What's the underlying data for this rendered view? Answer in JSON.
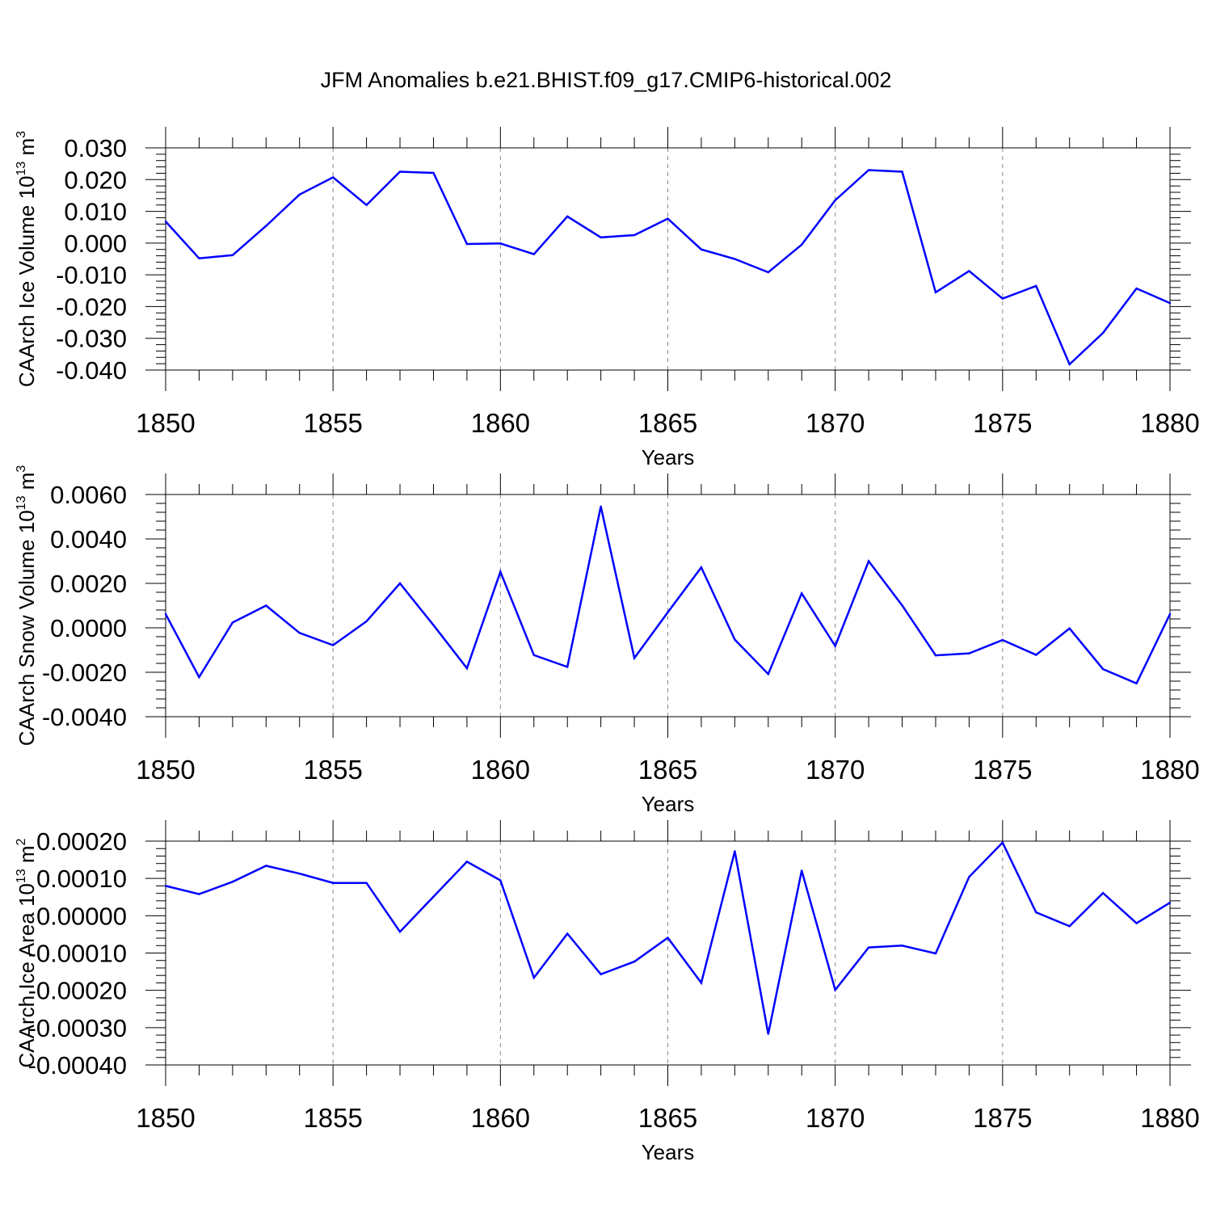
{
  "title": "JFM Anomalies b.e21.BHIST.f09_g17.CMIP6-historical.002",
  "chart_data": [
    {
      "type": "line",
      "title": "",
      "xlabel": "Years",
      "ylabel": "CAArch Ice Volume 10",
      "ylabel_sup": "13",
      "ylabel_unit": "m",
      "ylabel_unit_sup": "3",
      "xlim": [
        1850,
        1880
      ],
      "ylim": [
        -0.04,
        0.03
      ],
      "xticks": [
        1850,
        1855,
        1860,
        1865,
        1870,
        1875,
        1880
      ],
      "yticks": [
        -0.04,
        -0.03,
        -0.02,
        -0.01,
        0.0,
        0.01,
        0.02,
        0.03
      ],
      "ytick_labels": [
        "-0.040",
        "-0.030",
        "-0.020",
        "-0.010",
        "0.000",
        "0.010",
        "0.020",
        "0.030"
      ],
      "color": "#0000ff",
      "grid": "x-dashed",
      "x": [
        1850,
        1851,
        1852,
        1853,
        1854,
        1855,
        1856,
        1857,
        1858,
        1859,
        1860,
        1861,
        1862,
        1863,
        1864,
        1865,
        1866,
        1867,
        1868,
        1869,
        1870,
        1871,
        1872,
        1873,
        1874,
        1875,
        1876,
        1877,
        1878,
        1879,
        1880
      ],
      "values": [
        0.0068,
        -0.0048,
        -0.0038,
        0.0054,
        0.0153,
        0.0207,
        0.012,
        0.0225,
        0.0221,
        -0.0003,
        -0.0001,
        -0.0035,
        0.0084,
        0.0018,
        0.0025,
        0.0077,
        -0.002,
        -0.005,
        -0.0092,
        -0.0005,
        0.0135,
        0.023,
        0.0225,
        -0.0155,
        -0.0088,
        -0.0175,
        -0.0135,
        -0.0382,
        -0.0283,
        -0.0143,
        -0.0189
      ]
    },
    {
      "type": "line",
      "title": "",
      "xlabel": "Years",
      "ylabel": "CAArch Snow Volume 10",
      "ylabel_sup": "13",
      "ylabel_unit": "m",
      "ylabel_unit_sup": "3",
      "xlim": [
        1850,
        1880
      ],
      "ylim": [
        -0.004,
        0.006
      ],
      "xticks": [
        1850,
        1855,
        1860,
        1865,
        1870,
        1875,
        1880
      ],
      "yticks": [
        -0.004,
        -0.002,
        0.0,
        0.002,
        0.004,
        0.006
      ],
      "ytick_labels": [
        "-0.0040",
        "-0.0020",
        "0.0000",
        "0.0020",
        "0.0040",
        "0.0060"
      ],
      "color": "#0000ff",
      "grid": "x-dashed",
      "x": [
        1850,
        1851,
        1852,
        1853,
        1854,
        1855,
        1856,
        1857,
        1858,
        1859,
        1860,
        1861,
        1862,
        1863,
        1864,
        1865,
        1866,
        1867,
        1868,
        1869,
        1870,
        1871,
        1872,
        1873,
        1874,
        1875,
        1876,
        1877,
        1878,
        1879,
        1880
      ],
      "values": [
        0.00062,
        -0.00222,
        0.00024,
        0.001,
        -0.00023,
        -0.00078,
        0.00029,
        0.002,
        0.00012,
        -0.00182,
        0.00252,
        -0.00123,
        -0.00176,
        0.00546,
        -0.00136,
        0.0007,
        0.00272,
        -0.00053,
        -0.00208,
        0.00155,
        -0.00082,
        0.003,
        0.00101,
        -0.00124,
        -0.00115,
        -0.00055,
        -0.00122,
        -3e-05,
        -0.00186,
        -0.0025,
        0.00062
      ]
    },
    {
      "type": "line",
      "title": "",
      "xlabel": "Years",
      "ylabel": "CAArch Ice Area 10",
      "ylabel_sup": "13",
      "ylabel_unit": "m",
      "ylabel_unit_sup": "2",
      "xlim": [
        1850,
        1880
      ],
      "ylim": [
        -0.0004,
        0.0002
      ],
      "xticks": [
        1850,
        1855,
        1860,
        1865,
        1870,
        1875,
        1880
      ],
      "yticks": [
        -0.0004,
        -0.0003,
        -0.0002,
        -0.0001,
        0.0,
        0.0001,
        0.0002
      ],
      "ytick_labels": [
        "-0.00040",
        "-0.00030",
        "-0.00020",
        "-0.00010",
        "0.00000",
        "0.00010",
        "0.00020"
      ],
      "color": "#0000ff",
      "grid": "x-dashed",
      "x": [
        1850,
        1851,
        1852,
        1853,
        1854,
        1855,
        1856,
        1857,
        1858,
        1859,
        1860,
        1861,
        1862,
        1863,
        1864,
        1865,
        1866,
        1867,
        1868,
        1869,
        1870,
        1871,
        1872,
        1873,
        1874,
        1875,
        1876,
        1877,
        1878,
        1879,
        1880
      ],
      "values": [
        8e-05,
        5.8e-05,
        9.1e-05,
        0.000134,
        0.000113,
        8.8e-05,
        8.8e-05,
        -4.3e-05,
        5.1e-05,
        0.000145,
        9.5e-05,
        -0.000166,
        -4.8e-05,
        -0.000157,
        -0.000123,
        -5.9e-05,
        -0.00018,
        0.000173,
        -0.000317,
        0.000121,
        -0.000199,
        -8.5e-05,
        -8e-05,
        -0.000101,
        0.000104,
        0.000196,
        9e-06,
        -2.8e-05,
        6.1e-05,
        -2e-05,
        3.5e-05
      ]
    }
  ]
}
